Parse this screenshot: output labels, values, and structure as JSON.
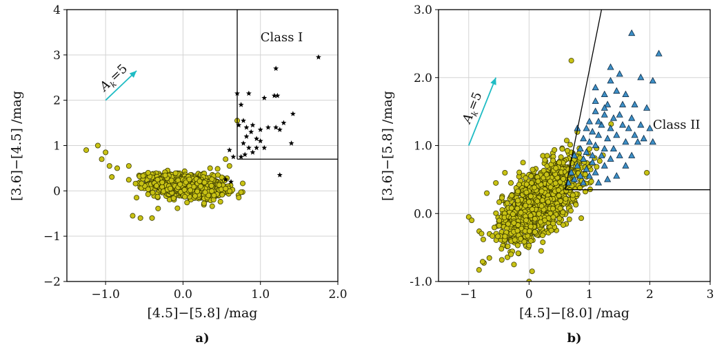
{
  "colors": {
    "class3": "#c8c214",
    "class3_edge": "#3a3a00",
    "class2": "#3d8fc6",
    "class2_edge": "#0e2b45",
    "class1": "#000000",
    "arrow": "#1fbcc4",
    "boundary": "#000000",
    "grid": "#d3d3d3"
  },
  "chart_data": [
    {
      "id": "a",
      "type": "scatter",
      "panel_label": "a)",
      "xlabel": "[4.5]−[5.8] /mag",
      "ylabel": "[3.6]−[4.5] /mag",
      "xlim": [
        -1.5,
        2.0
      ],
      "ylim": [
        -2,
        4
      ],
      "xticks": [
        -1.0,
        0.0,
        1.0,
        2.0
      ],
      "xtick_labels": [
        "−1.0",
        "0.0",
        "1.0",
        "2.0"
      ],
      "yticks": [
        -2,
        -1,
        0,
        1,
        2,
        3,
        4
      ],
      "ytick_labels": [
        "−2",
        "−1",
        "0",
        "1",
        "2",
        "3",
        "4"
      ],
      "grid": true,
      "annotation": "Class I",
      "annotation_at": [
        1.0,
        3.3
      ],
      "reddening_label": "A",
      "reddening_label_sub": "k",
      "reddening_label_tail": "=5",
      "reddening_vector": {
        "x0": -1.0,
        "y0": 2.0,
        "x1": -0.6,
        "y1": 2.65
      },
      "boundary_lines": [
        {
          "x": [
            0.7,
            0.7
          ],
          "y": [
            0.7,
            4.0
          ]
        },
        {
          "x": [
            0.7,
            2.0
          ],
          "y": [
            0.7,
            0.7
          ]
        }
      ],
      "series": [
        {
          "marker": "circle",
          "cloud": {
            "center": [
              0.05,
              0.1
            ],
            "spread": [
              0.24,
              0.13
            ],
            "n": 1100,
            "tilt": -0.15
          },
          "points": [
            [
              -1.25,
              0.9
            ],
            [
              -1.1,
              1.0
            ],
            [
              -1.05,
              0.7
            ],
            [
              -1.0,
              0.85
            ],
            [
              -0.95,
              0.55
            ],
            [
              -0.85,
              0.5
            ],
            [
              -0.7,
              0.55
            ],
            [
              -0.65,
              -0.55
            ],
            [
              -0.55,
              -0.6
            ],
            [
              -0.6,
              -0.15
            ],
            [
              -0.4,
              -0.6
            ],
            [
              -0.45,
              0.4
            ],
            [
              0.7,
              1.55
            ],
            [
              0.6,
              0.55
            ],
            [
              0.55,
              0.7
            ],
            [
              0.5,
              0.3
            ],
            [
              0.45,
              0.35
            ],
            [
              0.4,
              -0.1
            ],
            [
              0.55,
              0.05
            ],
            [
              0.35,
              0.5
            ]
          ]
        },
        {
          "marker": "star",
          "points": [
            [
              0.7,
              2.15
            ],
            [
              0.75,
              1.9
            ],
            [
              0.85,
              2.15
            ],
            [
              1.05,
              2.05
            ],
            [
              1.2,
              2.7
            ],
            [
              1.18,
              2.1
            ],
            [
              1.22,
              2.1
            ],
            [
              1.75,
              2.95
            ],
            [
              0.78,
              1.55
            ],
            [
              0.72,
              1.45
            ],
            [
              0.82,
              1.2
            ],
            [
              0.88,
              1.3
            ],
            [
              0.95,
              1.15
            ],
            [
              1.0,
              1.35
            ],
            [
              1.1,
              1.4
            ],
            [
              1.2,
              1.4
            ],
            [
              1.25,
              1.35
            ],
            [
              1.3,
              1.5
            ],
            [
              1.42,
              1.7
            ],
            [
              0.9,
              1.45
            ],
            [
              0.95,
              0.95
            ],
            [
              0.78,
              1.05
            ],
            [
              0.85,
              0.95
            ],
            [
              0.8,
              0.8
            ],
            [
              0.75,
              0.75
            ],
            [
              0.9,
              0.85
            ],
            [
              1.05,
              0.95
            ],
            [
              1.0,
              1.1
            ],
            [
              1.25,
              0.35
            ],
            [
              0.6,
              0.9
            ],
            [
              0.65,
              0.75
            ],
            [
              0.62,
              0.2
            ],
            [
              0.55,
              0.25
            ],
            [
              1.4,
              1.05
            ],
            [
              0.82,
              1.4
            ]
          ]
        }
      ]
    },
    {
      "id": "b",
      "type": "scatter",
      "panel_label": "b)",
      "xlabel": "[4.5]−[8.0] /mag",
      "ylabel": "[3.6]−[5.8] /mag",
      "xlim": [
        -1.5,
        3.0
      ],
      "ylim": [
        -1.0,
        3.0
      ],
      "xticks": [
        -1,
        0,
        1,
        2,
        3
      ],
      "xtick_labels": [
        "−1",
        "0",
        "1",
        "2",
        "3"
      ],
      "yticks": [
        -1.0,
        0.0,
        1.0,
        2.0,
        3.0
      ],
      "ytick_labels": [
        "-1.0",
        "0.0",
        "1.0",
        "2.0",
        "3.0"
      ],
      "grid": true,
      "annotation": "Class II",
      "annotation_at": [
        2.05,
        1.25
      ],
      "reddening_label": "A",
      "reddening_label_sub": "k",
      "reddening_label_tail": "=5",
      "reddening_vector": {
        "x0": -1.0,
        "y0": 1.0,
        "x1": -0.55,
        "y1": 2.0
      },
      "boundary_lines": [
        {
          "x": [
            0.6,
            1.2
          ],
          "y": [
            0.35,
            3.0
          ]
        },
        {
          "x": [
            0.6,
            3.0
          ],
          "y": [
            0.35,
            0.35
          ]
        }
      ],
      "series": [
        {
          "marker": "circle",
          "cloud": {
            "center": [
              0.2,
              0.2
            ],
            "spread": [
              0.32,
              0.22
            ],
            "n": 1500,
            "tilt": 0.55
          },
          "points": [
            [
              0.0,
              -1.0
            ],
            [
              0.15,
              -1.05
            ],
            [
              -0.25,
              -0.75
            ],
            [
              -1.0,
              -0.05
            ],
            [
              -0.95,
              -0.1
            ],
            [
              -0.7,
              0.3
            ],
            [
              -0.55,
              0.45
            ],
            [
              -0.4,
              0.6
            ],
            [
              0.7,
              2.25
            ],
            [
              1.95,
              0.6
            ],
            [
              0.8,
              1.2
            ],
            [
              1.0,
              0.95
            ],
            [
              0.55,
              0.95
            ],
            [
              -0.3,
              -0.6
            ],
            [
              0.2,
              -0.55
            ],
            [
              0.05,
              -0.85
            ],
            [
              -0.1,
              0.75
            ],
            [
              0.3,
              0.85
            ],
            [
              0.5,
              0.75
            ],
            [
              0.65,
              0.65
            ]
          ]
        },
        {
          "marker": "triangle",
          "points": [
            [
              1.7,
              2.65
            ],
            [
              2.15,
              2.35
            ],
            [
              1.35,
              2.15
            ],
            [
              1.5,
              2.05
            ],
            [
              1.85,
              2.0
            ],
            [
              2.05,
              1.95
            ],
            [
              1.1,
              1.85
            ],
            [
              1.25,
              1.75
            ],
            [
              1.45,
              1.8
            ],
            [
              1.6,
              1.75
            ],
            [
              1.3,
              1.6
            ],
            [
              1.75,
              1.6
            ],
            [
              1.95,
              1.55
            ],
            [
              1.1,
              1.5
            ],
            [
              1.25,
              1.45
            ],
            [
              1.5,
              1.45
            ],
            [
              1.7,
              1.4
            ],
            [
              1.0,
              1.35
            ],
            [
              1.2,
              1.3
            ],
            [
              1.35,
              1.25
            ],
            [
              1.55,
              1.3
            ],
            [
              1.85,
              1.3
            ],
            [
              1.05,
              1.2
            ],
            [
              1.15,
              1.15
            ],
            [
              1.3,
              1.1
            ],
            [
              1.45,
              1.15
            ],
            [
              1.6,
              1.05
            ],
            [
              1.75,
              1.15
            ],
            [
              1.9,
              1.1
            ],
            [
              2.05,
              1.05
            ],
            [
              0.9,
              1.1
            ],
            [
              1.0,
              1.05
            ],
            [
              1.1,
              1.0
            ],
            [
              1.25,
              0.95
            ],
            [
              1.4,
              0.95
            ],
            [
              0.85,
              0.95
            ],
            [
              0.95,
              0.9
            ],
            [
              1.2,
              0.85
            ],
            [
              1.35,
              0.8
            ],
            [
              1.5,
              0.85
            ],
            [
              0.75,
              0.85
            ],
            [
              0.9,
              0.8
            ],
            [
              1.05,
              0.75
            ],
            [
              1.25,
              0.7
            ],
            [
              1.6,
              0.7
            ],
            [
              1.7,
              0.85
            ],
            [
              0.8,
              0.7
            ],
            [
              0.95,
              0.65
            ],
            [
              1.1,
              0.6
            ],
            [
              0.7,
              0.6
            ],
            [
              0.85,
              0.55
            ],
            [
              1.0,
              0.55
            ],
            [
              1.3,
              0.5
            ],
            [
              0.75,
              0.5
            ],
            [
              0.9,
              0.45
            ],
            [
              1.15,
              0.45
            ],
            [
              0.65,
              0.45
            ],
            [
              1.45,
              0.55
            ],
            [
              0.8,
              1.25
            ],
            [
              1.15,
              1.35
            ],
            [
              1.4,
              1.4
            ],
            [
              1.65,
              1.25
            ],
            [
              1.8,
              1.05
            ],
            [
              0.95,
              1.25
            ],
            [
              1.25,
              1.55
            ],
            [
              1.55,
              1.6
            ],
            [
              1.35,
              1.95
            ],
            [
              1.1,
              1.65
            ],
            [
              2.0,
              1.25
            ],
            [
              1.05,
              0.85
            ]
          ]
        }
      ]
    }
  ]
}
